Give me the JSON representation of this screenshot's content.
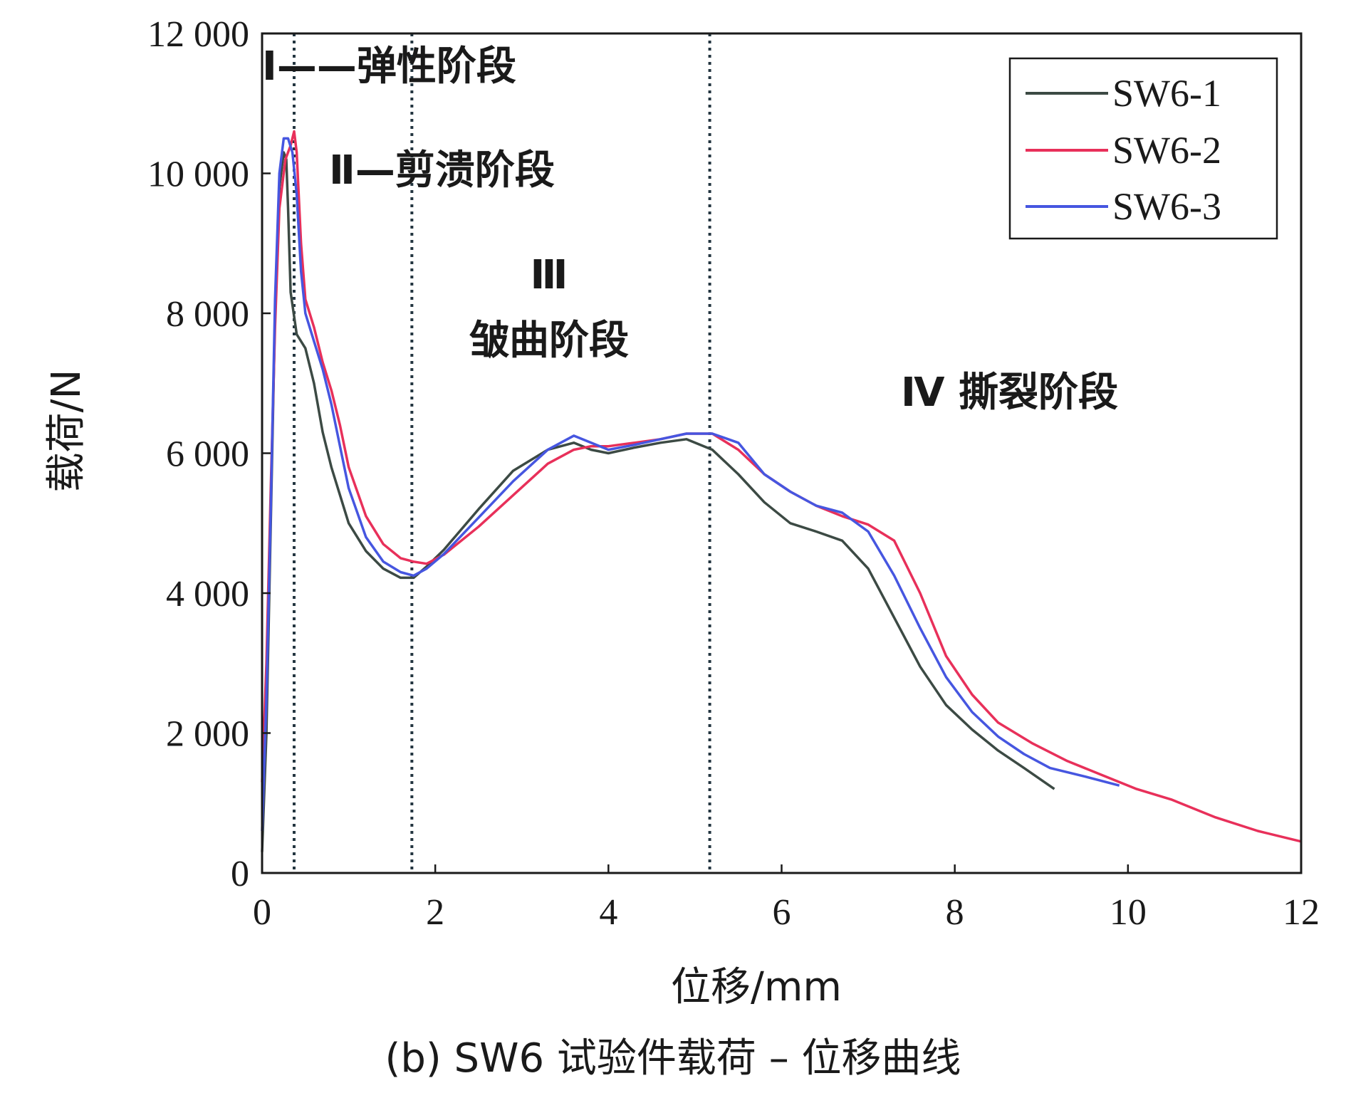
{
  "caption": "(b) SW6 试验件载荷 – 位移曲线",
  "chart_data": {
    "type": "line",
    "xlabel": "位移/mm",
    "ylabel": "载荷/N",
    "xlim": [
      0,
      12
    ],
    "ylim": [
      0,
      12000
    ],
    "x_ticks": [
      "0",
      "2",
      "4",
      "6",
      "8",
      "10",
      "12"
    ],
    "y_ticks": [
      "0",
      "2 000",
      "4 000",
      "6 000",
      "8 000",
      "10 000",
      "12 000"
    ],
    "legend_position": "top-right",
    "stage_boundaries": [
      0.37,
      1.73,
      5.17
    ],
    "stage_labels": {
      "stage1": "Ⅰ——弹性阶段",
      "stage2": "Ⅱ—剪溃阶段",
      "stage3_num": "Ⅲ",
      "stage3_text": "皱曲阶段",
      "stage4": "Ⅳ 撕裂阶段"
    },
    "series": [
      {
        "name": "SW6-1",
        "color": "#3c4a44",
        "points": [
          [
            0.0,
            300
          ],
          [
            0.05,
            2000
          ],
          [
            0.1,
            5000
          ],
          [
            0.15,
            8000
          ],
          [
            0.2,
            9800
          ],
          [
            0.25,
            10300
          ],
          [
            0.28,
            10200
          ],
          [
            0.3,
            9500
          ],
          [
            0.33,
            8300
          ],
          [
            0.4,
            7700
          ],
          [
            0.5,
            7500
          ],
          [
            0.6,
            7000
          ],
          [
            0.7,
            6300
          ],
          [
            0.8,
            5800
          ],
          [
            1.0,
            5000
          ],
          [
            1.2,
            4600
          ],
          [
            1.4,
            4350
          ],
          [
            1.6,
            4220
          ],
          [
            1.75,
            4220
          ],
          [
            1.9,
            4380
          ],
          [
            2.1,
            4620
          ],
          [
            2.5,
            5200
          ],
          [
            2.9,
            5750
          ],
          [
            3.3,
            6050
          ],
          [
            3.6,
            6150
          ],
          [
            3.8,
            6050
          ],
          [
            4.0,
            6000
          ],
          [
            4.3,
            6080
          ],
          [
            4.6,
            6150
          ],
          [
            4.9,
            6200
          ],
          [
            5.2,
            6050
          ],
          [
            5.5,
            5700
          ],
          [
            5.8,
            5300
          ],
          [
            6.1,
            5000
          ],
          [
            6.4,
            4880
          ],
          [
            6.7,
            4750
          ],
          [
            7.0,
            4350
          ],
          [
            7.3,
            3650
          ],
          [
            7.6,
            2950
          ],
          [
            7.9,
            2400
          ],
          [
            8.2,
            2050
          ],
          [
            8.5,
            1750
          ],
          [
            8.8,
            1500
          ],
          [
            9.15,
            1200
          ]
        ]
      },
      {
        "name": "SW6-2",
        "color": "#e8305a",
        "points": [
          [
            0.0,
            1300
          ],
          [
            0.05,
            3000
          ],
          [
            0.1,
            5500
          ],
          [
            0.15,
            7800
          ],
          [
            0.2,
            9500
          ],
          [
            0.27,
            10200
          ],
          [
            0.33,
            10400
          ],
          [
            0.37,
            10600
          ],
          [
            0.4,
            10300
          ],
          [
            0.45,
            9000
          ],
          [
            0.5,
            8200
          ],
          [
            0.6,
            7800
          ],
          [
            0.7,
            7300
          ],
          [
            0.8,
            6900
          ],
          [
            0.9,
            6400
          ],
          [
            1.0,
            5800
          ],
          [
            1.2,
            5100
          ],
          [
            1.4,
            4700
          ],
          [
            1.6,
            4500
          ],
          [
            1.75,
            4450
          ],
          [
            1.9,
            4420
          ],
          [
            2.1,
            4550
          ],
          [
            2.5,
            4950
          ],
          [
            2.9,
            5400
          ],
          [
            3.3,
            5850
          ],
          [
            3.6,
            6050
          ],
          [
            3.8,
            6100
          ],
          [
            4.0,
            6100
          ],
          [
            4.3,
            6150
          ],
          [
            4.6,
            6200
          ],
          [
            4.9,
            6280
          ],
          [
            5.2,
            6280
          ],
          [
            5.5,
            6050
          ],
          [
            5.8,
            5700
          ],
          [
            6.1,
            5450
          ],
          [
            6.4,
            5250
          ],
          [
            6.7,
            5100
          ],
          [
            7.0,
            4980
          ],
          [
            7.3,
            4750
          ],
          [
            7.6,
            4000
          ],
          [
            7.9,
            3100
          ],
          [
            8.2,
            2550
          ],
          [
            8.5,
            2150
          ],
          [
            8.9,
            1850
          ],
          [
            9.3,
            1600
          ],
          [
            9.7,
            1400
          ],
          [
            10.1,
            1200
          ],
          [
            10.5,
            1050
          ],
          [
            11.0,
            800
          ],
          [
            11.5,
            600
          ],
          [
            12.0,
            450
          ]
        ]
      },
      {
        "name": "SW6-3",
        "color": "#4656e0",
        "points": [
          [
            0.0,
            600
          ],
          [
            0.05,
            2500
          ],
          [
            0.1,
            5200
          ],
          [
            0.15,
            8200
          ],
          [
            0.2,
            10000
          ],
          [
            0.25,
            10500
          ],
          [
            0.3,
            10500
          ],
          [
            0.35,
            10300
          ],
          [
            0.4,
            9700
          ],
          [
            0.45,
            8600
          ],
          [
            0.5,
            8000
          ],
          [
            0.6,
            7600
          ],
          [
            0.7,
            7200
          ],
          [
            0.8,
            6700
          ],
          [
            0.9,
            6100
          ],
          [
            1.0,
            5500
          ],
          [
            1.2,
            4800
          ],
          [
            1.4,
            4450
          ],
          [
            1.6,
            4300
          ],
          [
            1.75,
            4250
          ],
          [
            1.9,
            4350
          ],
          [
            2.1,
            4560
          ],
          [
            2.5,
            5080
          ],
          [
            2.9,
            5600
          ],
          [
            3.3,
            6050
          ],
          [
            3.6,
            6250
          ],
          [
            3.8,
            6150
          ],
          [
            4.0,
            6050
          ],
          [
            4.3,
            6120
          ],
          [
            4.6,
            6200
          ],
          [
            4.9,
            6280
          ],
          [
            5.2,
            6280
          ],
          [
            5.5,
            6150
          ],
          [
            5.8,
            5700
          ],
          [
            6.1,
            5450
          ],
          [
            6.4,
            5250
          ],
          [
            6.7,
            5150
          ],
          [
            7.0,
            4880
          ],
          [
            7.3,
            4250
          ],
          [
            7.6,
            3500
          ],
          [
            7.9,
            2800
          ],
          [
            8.2,
            2300
          ],
          [
            8.5,
            1950
          ],
          [
            8.8,
            1700
          ],
          [
            9.1,
            1500
          ],
          [
            9.5,
            1380
          ],
          [
            9.9,
            1250
          ]
        ]
      }
    ]
  }
}
